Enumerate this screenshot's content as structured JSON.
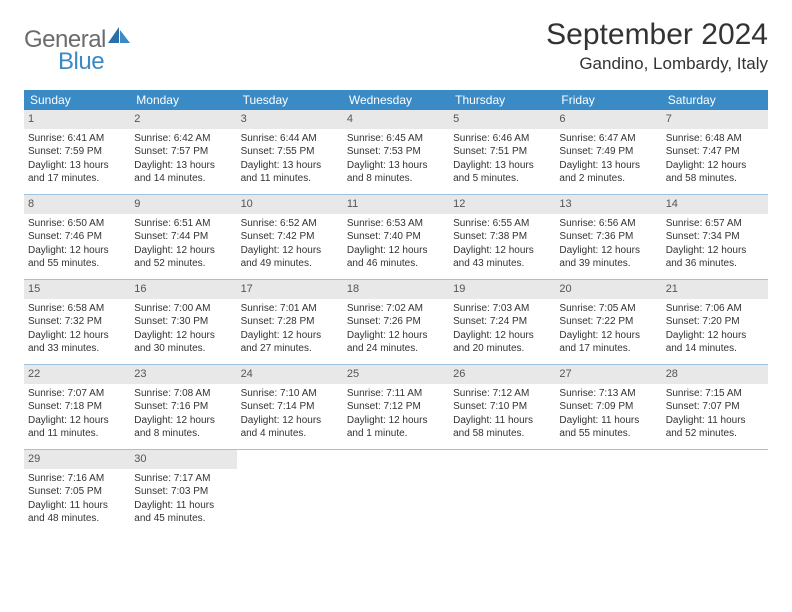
{
  "brand": {
    "part1": "General",
    "part2": "Blue"
  },
  "title": "September 2024",
  "location": "Gandino, Lombardy, Italy",
  "colors": {
    "header_bg": "#3a8ac6",
    "header_text": "#ffffff",
    "daynum_bg": "#e8e8e8",
    "divider": "#3a8ac6",
    "body_text": "#333333",
    "logo_gray": "#6b6b6b",
    "logo_blue": "#3a8ac6",
    "page_bg": "#ffffff"
  },
  "typography": {
    "title_fontsize": 30,
    "location_fontsize": 17,
    "dow_fontsize": 12,
    "daynum_fontsize": 11,
    "body_fontsize": 10
  },
  "days_of_week": [
    "Sunday",
    "Monday",
    "Tuesday",
    "Wednesday",
    "Thursday",
    "Friday",
    "Saturday"
  ],
  "weeks": [
    [
      {
        "n": "1",
        "sunrise": "Sunrise: 6:41 AM",
        "sunset": "Sunset: 7:59 PM",
        "daylight": "Daylight: 13 hours and 17 minutes."
      },
      {
        "n": "2",
        "sunrise": "Sunrise: 6:42 AM",
        "sunset": "Sunset: 7:57 PM",
        "daylight": "Daylight: 13 hours and 14 minutes."
      },
      {
        "n": "3",
        "sunrise": "Sunrise: 6:44 AM",
        "sunset": "Sunset: 7:55 PM",
        "daylight": "Daylight: 13 hours and 11 minutes."
      },
      {
        "n": "4",
        "sunrise": "Sunrise: 6:45 AM",
        "sunset": "Sunset: 7:53 PM",
        "daylight": "Daylight: 13 hours and 8 minutes."
      },
      {
        "n": "5",
        "sunrise": "Sunrise: 6:46 AM",
        "sunset": "Sunset: 7:51 PM",
        "daylight": "Daylight: 13 hours and 5 minutes."
      },
      {
        "n": "6",
        "sunrise": "Sunrise: 6:47 AM",
        "sunset": "Sunset: 7:49 PM",
        "daylight": "Daylight: 13 hours and 2 minutes."
      },
      {
        "n": "7",
        "sunrise": "Sunrise: 6:48 AM",
        "sunset": "Sunset: 7:47 PM",
        "daylight": "Daylight: 12 hours and 58 minutes."
      }
    ],
    [
      {
        "n": "8",
        "sunrise": "Sunrise: 6:50 AM",
        "sunset": "Sunset: 7:46 PM",
        "daylight": "Daylight: 12 hours and 55 minutes."
      },
      {
        "n": "9",
        "sunrise": "Sunrise: 6:51 AM",
        "sunset": "Sunset: 7:44 PM",
        "daylight": "Daylight: 12 hours and 52 minutes."
      },
      {
        "n": "10",
        "sunrise": "Sunrise: 6:52 AM",
        "sunset": "Sunset: 7:42 PM",
        "daylight": "Daylight: 12 hours and 49 minutes."
      },
      {
        "n": "11",
        "sunrise": "Sunrise: 6:53 AM",
        "sunset": "Sunset: 7:40 PM",
        "daylight": "Daylight: 12 hours and 46 minutes."
      },
      {
        "n": "12",
        "sunrise": "Sunrise: 6:55 AM",
        "sunset": "Sunset: 7:38 PM",
        "daylight": "Daylight: 12 hours and 43 minutes."
      },
      {
        "n": "13",
        "sunrise": "Sunrise: 6:56 AM",
        "sunset": "Sunset: 7:36 PM",
        "daylight": "Daylight: 12 hours and 39 minutes."
      },
      {
        "n": "14",
        "sunrise": "Sunrise: 6:57 AM",
        "sunset": "Sunset: 7:34 PM",
        "daylight": "Daylight: 12 hours and 36 minutes."
      }
    ],
    [
      {
        "n": "15",
        "sunrise": "Sunrise: 6:58 AM",
        "sunset": "Sunset: 7:32 PM",
        "daylight": "Daylight: 12 hours and 33 minutes."
      },
      {
        "n": "16",
        "sunrise": "Sunrise: 7:00 AM",
        "sunset": "Sunset: 7:30 PM",
        "daylight": "Daylight: 12 hours and 30 minutes."
      },
      {
        "n": "17",
        "sunrise": "Sunrise: 7:01 AM",
        "sunset": "Sunset: 7:28 PM",
        "daylight": "Daylight: 12 hours and 27 minutes."
      },
      {
        "n": "18",
        "sunrise": "Sunrise: 7:02 AM",
        "sunset": "Sunset: 7:26 PM",
        "daylight": "Daylight: 12 hours and 24 minutes."
      },
      {
        "n": "19",
        "sunrise": "Sunrise: 7:03 AM",
        "sunset": "Sunset: 7:24 PM",
        "daylight": "Daylight: 12 hours and 20 minutes."
      },
      {
        "n": "20",
        "sunrise": "Sunrise: 7:05 AM",
        "sunset": "Sunset: 7:22 PM",
        "daylight": "Daylight: 12 hours and 17 minutes."
      },
      {
        "n": "21",
        "sunrise": "Sunrise: 7:06 AM",
        "sunset": "Sunset: 7:20 PM",
        "daylight": "Daylight: 12 hours and 14 minutes."
      }
    ],
    [
      {
        "n": "22",
        "sunrise": "Sunrise: 7:07 AM",
        "sunset": "Sunset: 7:18 PM",
        "daylight": "Daylight: 12 hours and 11 minutes."
      },
      {
        "n": "23",
        "sunrise": "Sunrise: 7:08 AM",
        "sunset": "Sunset: 7:16 PM",
        "daylight": "Daylight: 12 hours and 8 minutes."
      },
      {
        "n": "24",
        "sunrise": "Sunrise: 7:10 AM",
        "sunset": "Sunset: 7:14 PM",
        "daylight": "Daylight: 12 hours and 4 minutes."
      },
      {
        "n": "25",
        "sunrise": "Sunrise: 7:11 AM",
        "sunset": "Sunset: 7:12 PM",
        "daylight": "Daylight: 12 hours and 1 minute."
      },
      {
        "n": "26",
        "sunrise": "Sunrise: 7:12 AM",
        "sunset": "Sunset: 7:10 PM",
        "daylight": "Daylight: 11 hours and 58 minutes."
      },
      {
        "n": "27",
        "sunrise": "Sunrise: 7:13 AM",
        "sunset": "Sunset: 7:09 PM",
        "daylight": "Daylight: 11 hours and 55 minutes."
      },
      {
        "n": "28",
        "sunrise": "Sunrise: 7:15 AM",
        "sunset": "Sunset: 7:07 PM",
        "daylight": "Daylight: 11 hours and 52 minutes."
      }
    ],
    [
      {
        "n": "29",
        "sunrise": "Sunrise: 7:16 AM",
        "sunset": "Sunset: 7:05 PM",
        "daylight": "Daylight: 11 hours and 48 minutes."
      },
      {
        "n": "30",
        "sunrise": "Sunrise: 7:17 AM",
        "sunset": "Sunset: 7:03 PM",
        "daylight": "Daylight: 11 hours and 45 minutes."
      },
      null,
      null,
      null,
      null,
      null
    ]
  ]
}
